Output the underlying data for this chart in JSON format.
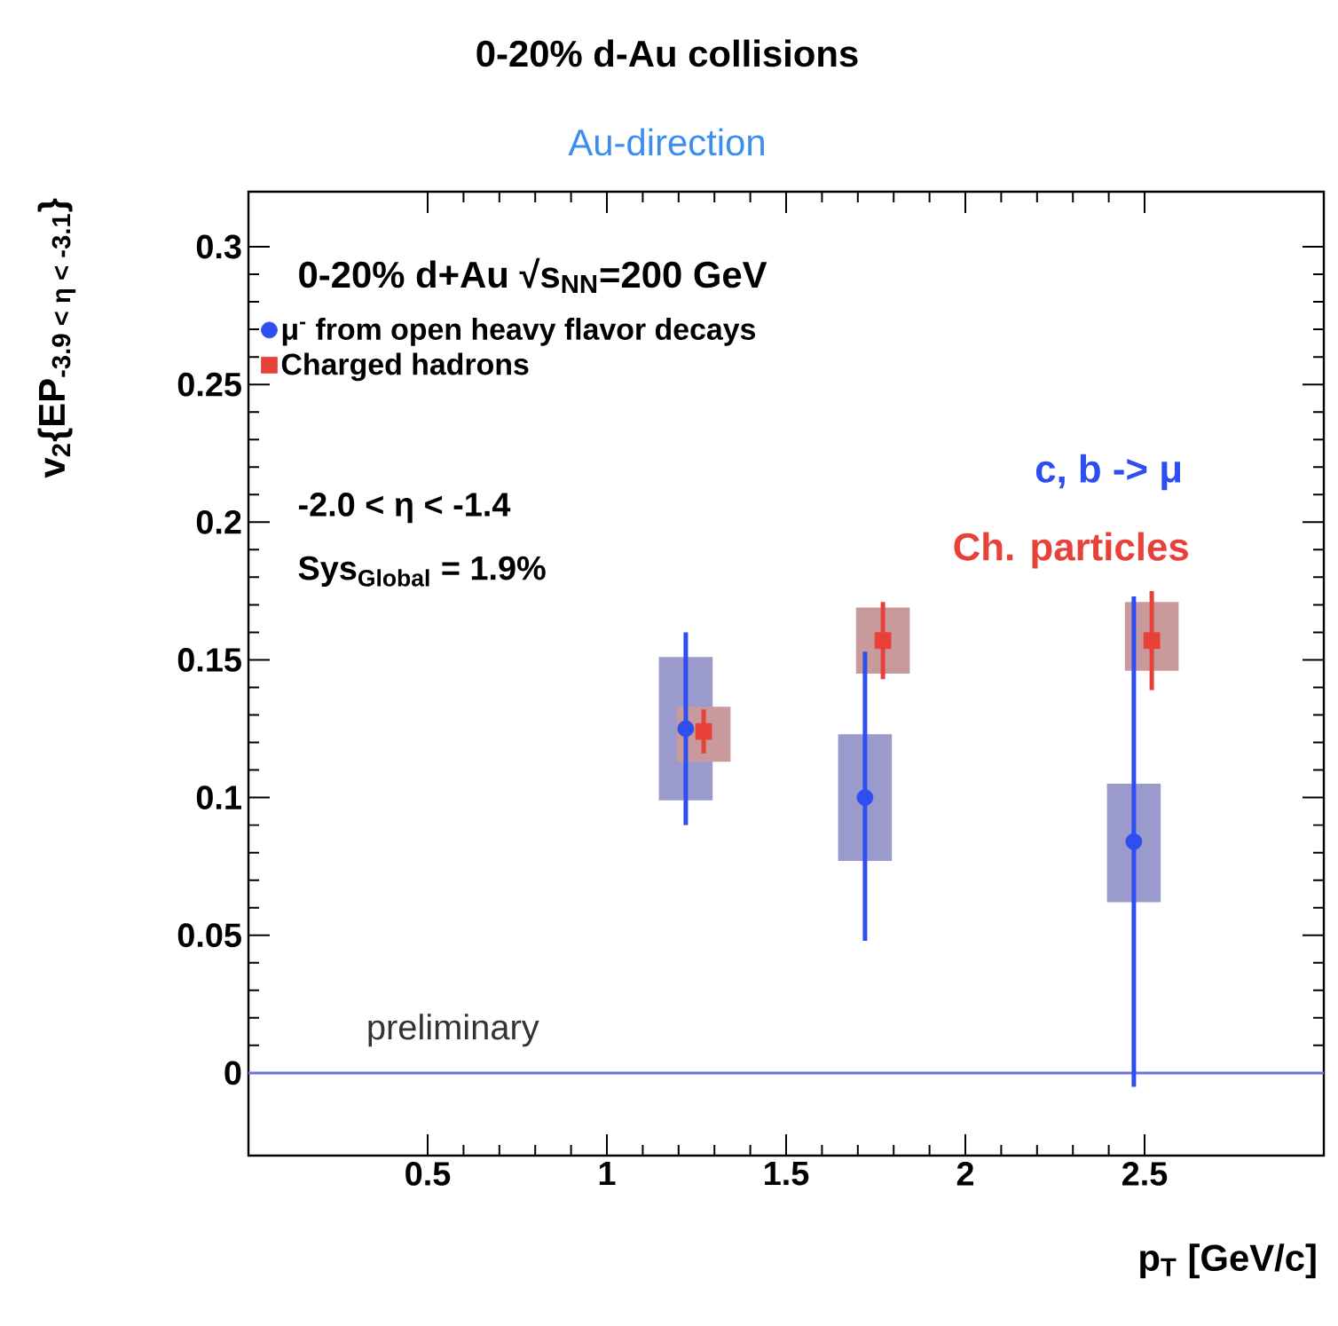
{
  "chart_data": {
    "type": "scatter",
    "title": "0-20% d-Au collisions",
    "subtitle": "Au-direction",
    "xlabel": "p$_{T}$ [GeV/c]",
    "ylabel": "v$_{2}${EP$_{-3.9 < η < -3.1}$}",
    "xlim": [
      0,
      3
    ],
    "ylim": [
      -0.03,
      0.32
    ],
    "xticks": [
      0.5,
      1,
      1.5,
      2,
      2.5
    ],
    "yticks": [
      0,
      0.05,
      0.1,
      0.15,
      0.2,
      0.25,
      0.3
    ],
    "series": [
      {
        "type": "bar",
        "color": "#9a9bcc",
        "x": [
          1.22,
          1.72,
          2.47
        ],
        "base": [
          0.099,
          0.077,
          0.062
        ],
        "values": [
          0.052,
          0.046,
          0.043
        ]
      },
      {
        "type": "bar",
        "color": "#c99a9b",
        "x": [
          1.27,
          1.77,
          2.52
        ],
        "base": [
          0.113,
          0.145,
          0.146
        ],
        "values": [
          0.02,
          0.024,
          0.025
        ]
      },
      {
        "name": "μ$^{-}$ from open heavy flavor decays",
        "color": "#2f4ef0",
        "marker": "circle",
        "x": [
          1.22,
          1.72,
          2.47
        ],
        "values": [
          0.125,
          0.1,
          0.084
        ],
        "errors": [
          [
            0.09,
            0.16
          ],
          [
            0.048,
            0.153
          ],
          [
            -0.005,
            0.173
          ]
        ]
      },
      {
        "name": "Charged hadrons",
        "color": "#e8413a",
        "marker": "square",
        "x": [
          1.27,
          1.77,
          2.52
        ],
        "values": [
          0.124,
          0.157,
          0.157
        ],
        "errors": [
          [
            0.116,
            0.132
          ],
          [
            0.143,
            0.171
          ],
          [
            0.139,
            0.175
          ]
        ]
      }
    ],
    "ref_lines": [
      {
        "axis": "y",
        "value": 0,
        "color": "#6f72d9"
      }
    ],
    "legend": "top left",
    "annotations": [
      "0-20% d+Au √s$_{NN}$=200 GeV",
      "-2.0 < η < -1.4",
      "Sys$_{Global}$ = 1.9%",
      "c, b -> μ",
      "Ch. particles",
      "preliminary"
    ]
  }
}
